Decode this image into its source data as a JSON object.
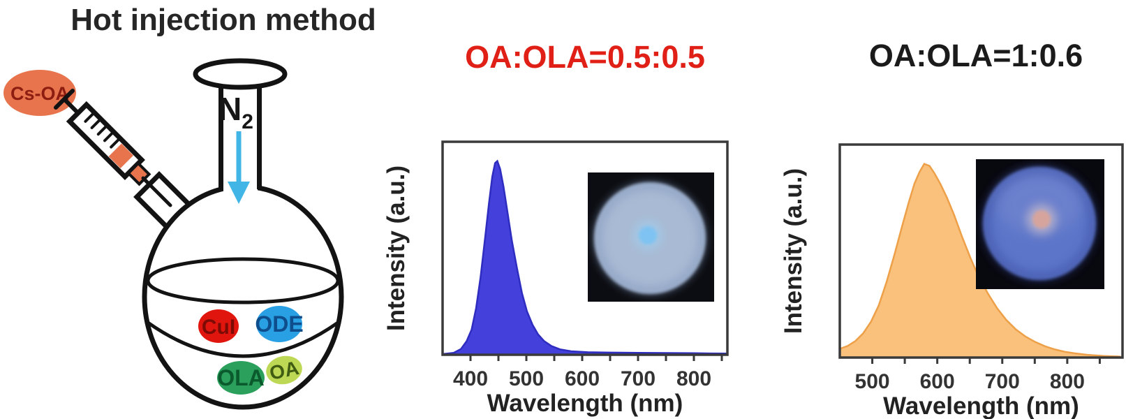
{
  "scheme": {
    "title": "Hot injection method",
    "syringe_label": "Cs-OA",
    "syringe_label_color": "#8c1d10",
    "syringe_fill": "#e8744d",
    "gas_label": "N",
    "gas_label_sub": "2",
    "gas_arrow_color": "#41b6e6",
    "flask_contents": [
      {
        "label": "CuI",
        "color": "#e0150e",
        "text_color": "#7c0b06"
      },
      {
        "label": "ODE",
        "color": "#2aa0e4",
        "text_color": "#0f4e8c"
      },
      {
        "label": "OLA",
        "color": "#2ba05c",
        "text_color": "#0a5a2d"
      },
      {
        "label": "OA",
        "color": "#bdd854",
        "text_color": "#3f5c12"
      }
    ]
  },
  "chart_data": [
    {
      "type": "area",
      "title": "OA:OLA=0.5:0.5",
      "title_color": "#e02017",
      "xlabel": "Wavelength (nm)",
      "ylabel": "Intensity (a.u.)",
      "xlim": [
        350,
        860
      ],
      "ylim": [
        0,
        1.1
      ],
      "x_major_ticks": [
        400,
        500,
        600,
        700,
        800
      ],
      "x_minor_step": 50,
      "grid": false,
      "legend": "none",
      "axis_color": "#3a3a3a",
      "fill_color": "#4340dc",
      "line_color": "#2f2cc0",
      "x": [
        352,
        370,
        383,
        393,
        402,
        410,
        418,
        426,
        433,
        439,
        444,
        448,
        453,
        459,
        466,
        474,
        483,
        492,
        501,
        511,
        521,
        532,
        545,
        560,
        580,
        610,
        650,
        700,
        750,
        800,
        830,
        858
      ],
      "y": [
        0.004,
        0.01,
        0.03,
        0.07,
        0.13,
        0.24,
        0.4,
        0.6,
        0.78,
        0.92,
        0.99,
        1.0,
        0.96,
        0.87,
        0.74,
        0.59,
        0.45,
        0.32,
        0.225,
        0.155,
        0.105,
        0.07,
        0.045,
        0.028,
        0.018,
        0.013,
        0.011,
        0.01,
        0.009,
        0.008,
        0.007,
        0.006
      ],
      "inset": {
        "bg": "#0c0d12",
        "disc": "#a9bad4",
        "disc_edge": "#8096ba",
        "spot_glow": "#9fd0f0",
        "spot": "#7fc3f2",
        "desc": "round filter paper under UV glowing pale blue with bright blue spot"
      }
    },
    {
      "type": "area",
      "title": "OA:OLA=1:0.6",
      "title_color": "#1b1b1b",
      "xlabel": "Wavelength (nm)",
      "ylabel": "Intensity (a.u.)",
      "xlim": [
        450,
        885
      ],
      "ylim": [
        0,
        1.1
      ],
      "x_major_ticks": [
        500,
        600,
        700,
        800
      ],
      "x_minor_step": 50,
      "grid": false,
      "legend": "none",
      "axis_color": "#3a3a3a",
      "fill_color": "#f9c17c",
      "line_color": "#eea049",
      "x": [
        450,
        462,
        474,
        486,
        498,
        510,
        522,
        534,
        546,
        556,
        565,
        573,
        580,
        588,
        596,
        605,
        615,
        626,
        638,
        651,
        664,
        678,
        692,
        706,
        721,
        736,
        751,
        766,
        781,
        796,
        811,
        831,
        856,
        882
      ],
      "y": [
        0.045,
        0.06,
        0.085,
        0.125,
        0.185,
        0.27,
        0.39,
        0.53,
        0.68,
        0.8,
        0.9,
        0.96,
        1.0,
        0.99,
        0.95,
        0.895,
        0.825,
        0.735,
        0.625,
        0.515,
        0.415,
        0.33,
        0.255,
        0.195,
        0.145,
        0.108,
        0.08,
        0.058,
        0.042,
        0.03,
        0.022,
        0.014,
        0.008,
        0.005
      ],
      "inset": {
        "bg": "#08080f",
        "disc": "#5b74c8",
        "disc_edge": "#3a4da0",
        "highlight": "#8494d6",
        "spot_glow": "#dcc8ca",
        "spot": "#d6a49c",
        "desc": "round filter paper under UV glowing blue-violet with small pink spot"
      }
    }
  ]
}
